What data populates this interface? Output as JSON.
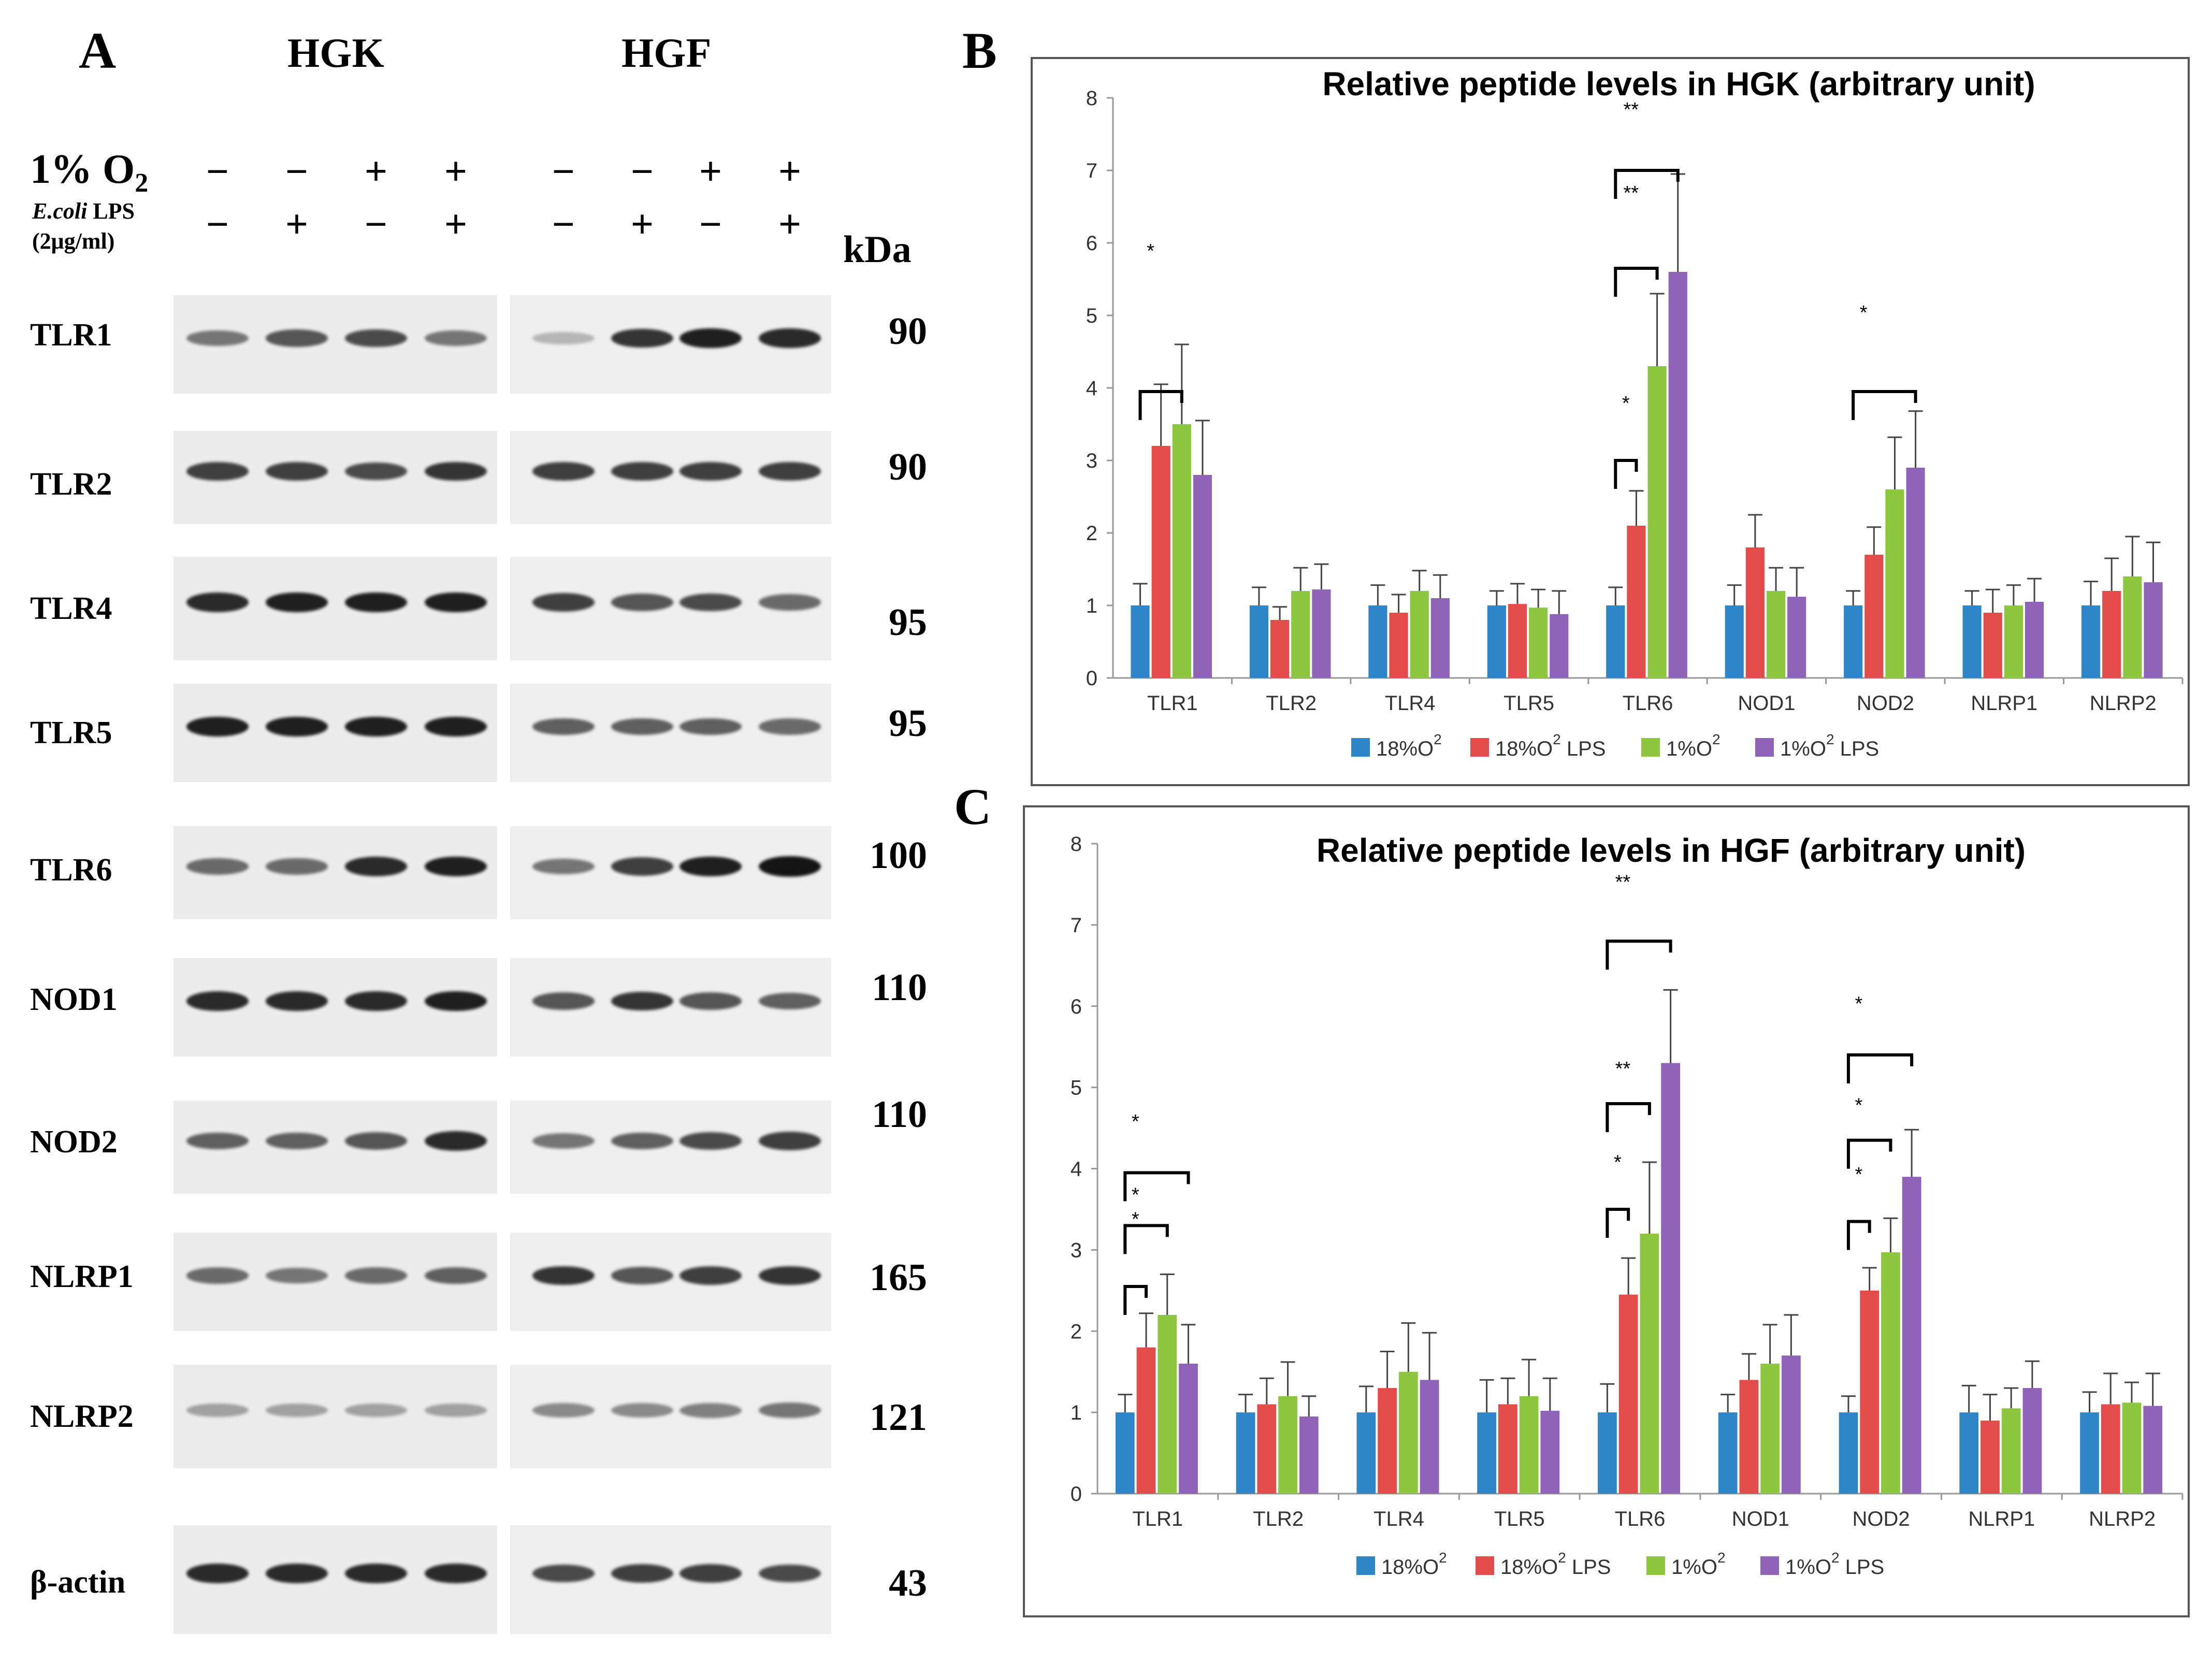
{
  "panel_a": {
    "letter": "A",
    "groups": [
      "HGK",
      "HGF"
    ],
    "o2_label": "1% O",
    "o2_subscript": "2",
    "lps_label_italic": "E.coli",
    "lps_label_rest": " LPS",
    "lps_dose": "(2μg/ml)",
    "kda_header": "kDa",
    "o2_signs": [
      "−",
      "−",
      "+",
      "+",
      "−",
      "−",
      "+",
      "+"
    ],
    "lps_signs": [
      "−",
      "+",
      "−",
      "+",
      "−",
      "+",
      "−",
      "+"
    ],
    "proteins": [
      {
        "name": "TLR1",
        "kda": "90"
      },
      {
        "name": "TLR2",
        "kda": "90"
      },
      {
        "name": "TLR4",
        "kda": "95"
      },
      {
        "name": "TLR5",
        "kda": "95"
      },
      {
        "name": "TLR6",
        "kda": "100"
      },
      {
        "name": "NOD1",
        "kda": "110"
      },
      {
        "name": "NOD2",
        "kda": "110"
      },
      {
        "name": "NLRP1",
        "kda": "165"
      },
      {
        "name": "NLRP2",
        "kda": "121"
      },
      {
        "name": "β-actin",
        "kda": "43"
      }
    ]
  },
  "panel_b": {
    "letter": "B"
  },
  "panel_c": {
    "letter": "C"
  },
  "colors": {
    "blue": "#2E86C8",
    "red": "#E44B4B",
    "green": "#8DC63F",
    "purple": "#8E63B8"
  },
  "chart_data": [
    {
      "type": "bar",
      "title": "Relative peptide levels in HGK (arbitrary unit)",
      "categories": [
        "TLR1",
        "TLR2",
        "TLR4",
        "TLR5",
        "TLR6",
        "NOD1",
        "NOD2",
        "NLRP1",
        "NLRP2"
      ],
      "ylim": [
        0,
        8
      ],
      "yticks": [
        "0",
        "1",
        "2",
        "3",
        "4",
        "5",
        "6",
        "7",
        "8"
      ],
      "legend_placement": "bottom",
      "series": [
        {
          "name": "18%O",
          "sup": "2",
          "name_suffix": "",
          "color": "#2E86C8",
          "values": [
            1,
            1,
            1,
            1,
            1,
            1,
            1,
            1,
            1
          ],
          "errors": [
            0.3,
            0.25,
            0.28,
            0.2,
            0.25,
            0.28,
            0.2,
            0.2,
            0.33
          ]
        },
        {
          "name": "18%O",
          "sup": "2",
          "name_suffix": " LPS",
          "color": "#E44B4B",
          "values": [
            3.2,
            0.8,
            0.9,
            1.02,
            2.1,
            1.8,
            1.7,
            0.9,
            1.2
          ],
          "errors": [
            0.85,
            0.18,
            0.25,
            0.28,
            0.48,
            0.45,
            0.38,
            0.32,
            0.45
          ]
        },
        {
          "name": "1%O",
          "sup": "2",
          "name_suffix": "",
          "color": "#8DC63F",
          "values": [
            3.5,
            1.2,
            1.2,
            0.97,
            4.3,
            1.2,
            2.6,
            1.0,
            1.4
          ],
          "errors": [
            1.1,
            0.32,
            0.28,
            0.25,
            1.0,
            0.32,
            0.72,
            0.28,
            0.55
          ]
        },
        {
          "name": "1%O",
          "sup": "2",
          "name_suffix": " LPS",
          "color": "#8E63B8",
          "values": [
            2.8,
            1.22,
            1.1,
            0.88,
            5.6,
            1.12,
            2.9,
            1.05,
            1.32
          ],
          "errors": [
            0.75,
            0.35,
            0.32,
            0.32,
            1.35,
            0.4,
            0.78,
            0.32,
            0.55
          ]
        }
      ],
      "significance": [
        {
          "cat": 0,
          "from": 0,
          "to": 2,
          "y": 3.95,
          "label": "*",
          "label_y": 5.8
        },
        {
          "cat": 4,
          "from": 0,
          "to": 1,
          "y": 3.0,
          "label": "*",
          "label_y": 3.7
        },
        {
          "cat": 4,
          "from": 0,
          "to": 2,
          "y": 5.65,
          "label": "**",
          "label_y": 6.6
        },
        {
          "cat": 4,
          "from": 0,
          "to": 3,
          "y": 7.0,
          "label": "**",
          "label_y": 7.75
        },
        {
          "cat": 6,
          "from": 0,
          "to": 3,
          "y": 3.95,
          "label": "*",
          "label_y": 4.95
        }
      ]
    },
    {
      "type": "bar",
      "title": "Relative peptide levels in HGF (arbitrary unit)",
      "categories": [
        "TLR1",
        "TLR2",
        "TLR4",
        "TLR5",
        "TLR6",
        "NOD1",
        "NOD2",
        "NLRP1",
        "NLRP2"
      ],
      "ylim": [
        0,
        8
      ],
      "yticks": [
        "0",
        "1",
        "2",
        "3",
        "4",
        "5",
        "6",
        "7",
        "8"
      ],
      "legend_placement": "bottom",
      "series": [
        {
          "name": "18%O",
          "sup": "2",
          "name_suffix": "",
          "color": "#2E86C8",
          "values": [
            1,
            1,
            1,
            1,
            1,
            1,
            1,
            1,
            1
          ],
          "errors": [
            0.22,
            0.22,
            0.32,
            0.4,
            0.35,
            0.22,
            0.2,
            0.33,
            0.25
          ]
        },
        {
          "name": "18%O",
          "sup": "2",
          "name_suffix": " LPS",
          "color": "#E44B4B",
          "values": [
            1.8,
            1.1,
            1.3,
            1.1,
            2.45,
            1.4,
            2.5,
            0.9,
            1.1
          ],
          "errors": [
            0.42,
            0.32,
            0.45,
            0.32,
            0.45,
            0.32,
            0.28,
            0.32,
            0.38
          ]
        },
        {
          "name": "1%O",
          "sup": "2",
          "name_suffix": "",
          "color": "#8DC63F",
          "values": [
            2.2,
            1.2,
            1.5,
            1.2,
            3.2,
            1.6,
            2.97,
            1.05,
            1.12
          ],
          "errors": [
            0.5,
            0.42,
            0.6,
            0.45,
            0.88,
            0.48,
            0.42,
            0.25,
            0.25
          ]
        },
        {
          "name": "1%O",
          "sup": "2",
          "name_suffix": " LPS",
          "color": "#8E63B8",
          "values": [
            1.6,
            0.95,
            1.4,
            1.02,
            5.3,
            1.7,
            3.9,
            1.3,
            1.08
          ],
          "errors": [
            0.48,
            0.25,
            0.58,
            0.4,
            0.9,
            0.5,
            0.58,
            0.33,
            0.4
          ]
        }
      ],
      "significance": [
        {
          "cat": 0,
          "from": 0,
          "to": 1,
          "y": 2.55,
          "label": "*",
          "label_y": 3.3
        },
        {
          "cat": 0,
          "from": 0,
          "to": 2,
          "y": 3.3,
          "label": "*",
          "label_y": 3.6
        },
        {
          "cat": 0,
          "from": 0,
          "to": 3,
          "y": 3.95,
          "label": "*",
          "label_y": 4.5
        },
        {
          "cat": 4,
          "from": 0,
          "to": 1,
          "y": 3.5,
          "label": "*",
          "label_y": 4.0
        },
        {
          "cat": 4,
          "from": 0,
          "to": 2,
          "y": 4.8,
          "label": "**",
          "label_y": 5.15
        },
        {
          "cat": 4,
          "from": 0,
          "to": 3,
          "y": 6.8,
          "label": "**",
          "label_y": 7.45
        },
        {
          "cat": 6,
          "from": 0,
          "to": 1,
          "y": 3.35,
          "label": "*",
          "label_y": 3.85
        },
        {
          "cat": 6,
          "from": 0,
          "to": 2,
          "y": 4.35,
          "label": "*",
          "label_y": 4.7
        },
        {
          "cat": 6,
          "from": 0,
          "to": 3,
          "y": 5.4,
          "label": "*",
          "label_y": 5.95
        }
      ]
    }
  ]
}
